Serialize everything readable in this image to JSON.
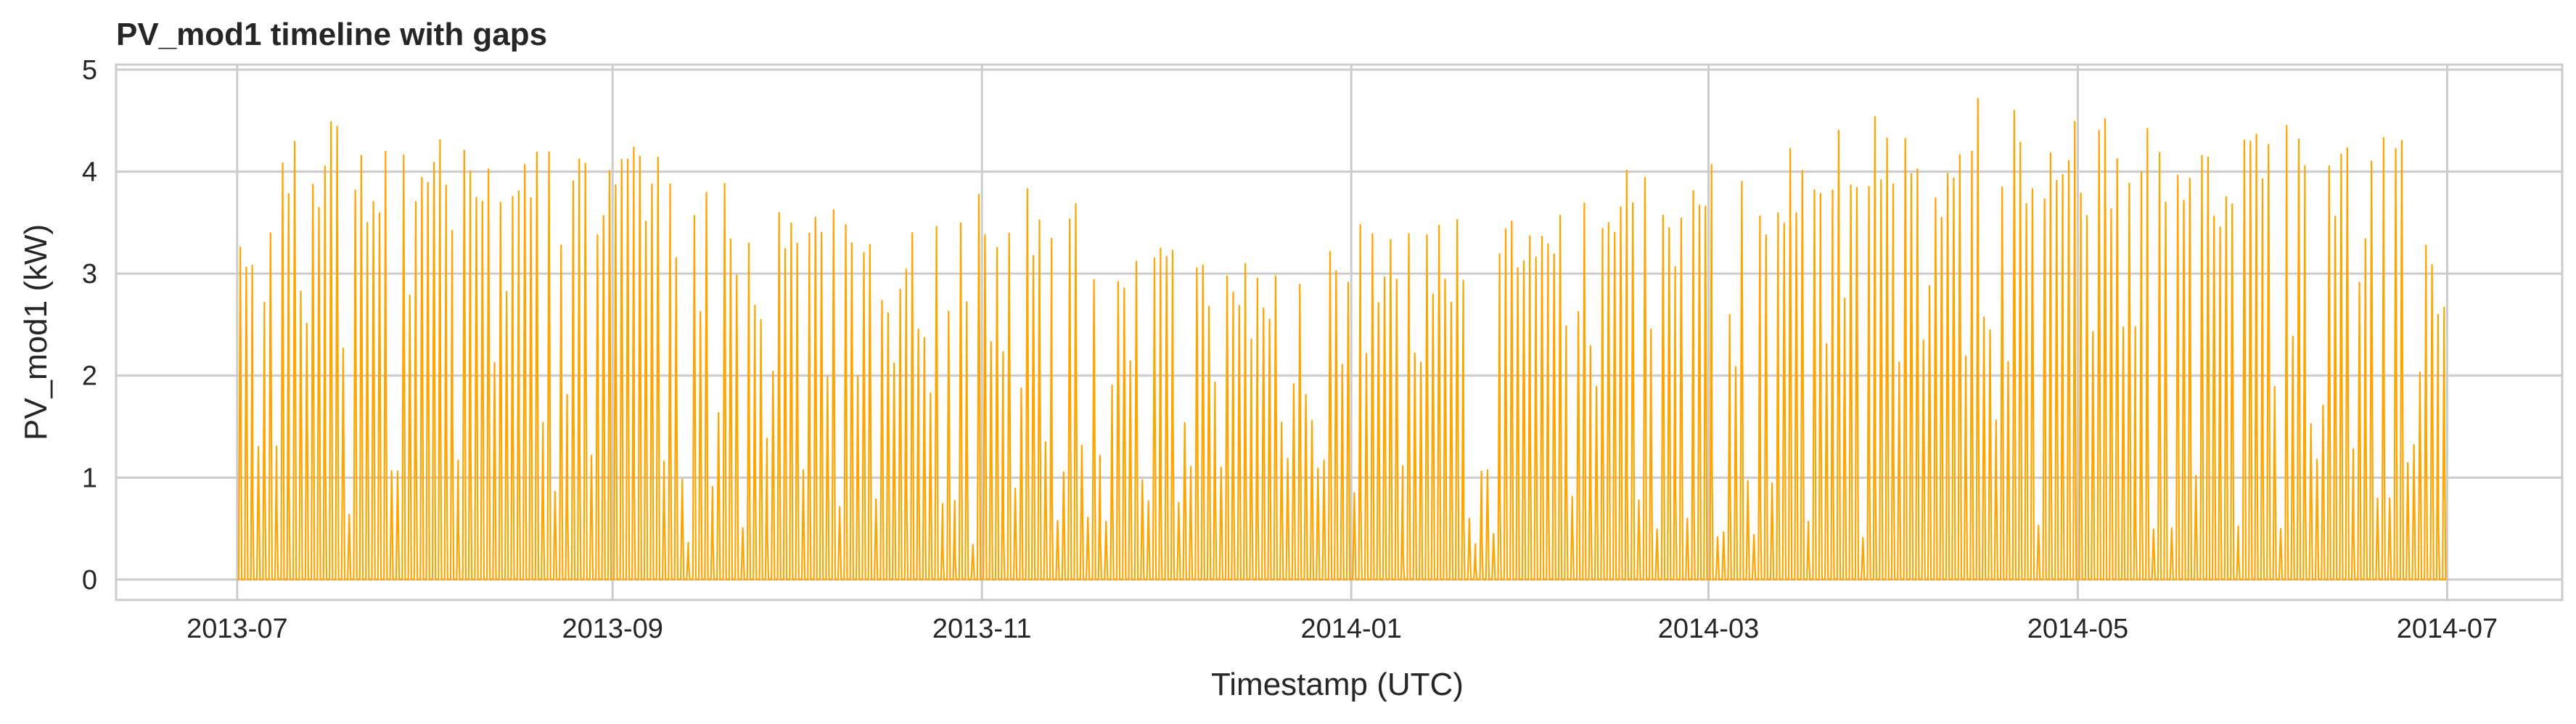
{
  "chart_data": {
    "type": "line",
    "title": "PV_mod1 timeline with gaps",
    "xlabel": "Timestamp (UTC)",
    "ylabel": "PV_mod1 (kW)",
    "ylim": [
      -0.2,
      5.05
    ],
    "xlim": [
      "2013-06-11",
      "2014-07-20"
    ],
    "x_ticks": [
      "2013-07",
      "2013-09",
      "2013-11",
      "2014-01",
      "2014-03",
      "2014-05",
      "2014-07"
    ],
    "y_ticks": [
      "0",
      "1",
      "2",
      "3",
      "4",
      "5"
    ],
    "x_range": [
      "2013-07-01",
      "2014-06-30"
    ],
    "grid": true,
    "color": "#FFA500",
    "series": [
      {
        "daily_peak": [
          {
            "date": "2013-07-01",
            "peak": 3.6
          },
          {
            "date": "2013-07-05",
            "peak": 3.2
          },
          {
            "date": "2013-07-08",
            "peak": 4.2
          },
          {
            "date": "2013-07-12",
            "peak": 4.4
          },
          {
            "date": "2013-07-15",
            "peak": 4.55
          },
          {
            "date": "2013-07-20",
            "peak": 4.3
          },
          {
            "date": "2013-07-25",
            "peak": 4.4
          },
          {
            "date": "2013-07-30",
            "peak": 4.3
          },
          {
            "date": "2013-08-05",
            "peak": 4.4
          },
          {
            "date": "2013-08-12",
            "peak": 4.3
          },
          {
            "date": "2013-08-20",
            "peak": 4.3
          },
          {
            "date": "2013-08-27",
            "peak": 4.3
          },
          {
            "date": "2013-09-03",
            "peak": 4.45
          },
          {
            "date": "2013-09-10",
            "peak": 4.2
          },
          {
            "date": "2013-09-18",
            "peak": 3.9
          },
          {
            "date": "2013-09-26",
            "peak": 3.8
          },
          {
            "date": "2013-10-05",
            "peak": 4.2
          },
          {
            "date": "2013-10-15",
            "peak": 3.3
          },
          {
            "date": "2013-10-25",
            "peak": 3.6
          },
          {
            "date": "2013-11-03",
            "peak": 4.0
          },
          {
            "date": "2013-11-12",
            "peak": 3.9
          },
          {
            "date": "2013-11-22",
            "peak": 3.4
          },
          {
            "date": "2013-12-05",
            "peak": 3.3
          },
          {
            "date": "2013-12-20",
            "peak": 3.1
          },
          {
            "date": "2014-01-01",
            "peak": 3.7
          },
          {
            "date": "2014-01-15",
            "peak": 3.5
          },
          {
            "date": "2014-02-01",
            "peak": 3.8
          },
          {
            "date": "2014-02-15",
            "peak": 4.1
          },
          {
            "date": "2014-03-01",
            "peak": 4.1
          },
          {
            "date": "2014-03-15",
            "peak": 4.3
          },
          {
            "date": "2014-03-25",
            "peak": 4.7
          },
          {
            "date": "2014-04-05",
            "peak": 4.5
          },
          {
            "date": "2014-04-15",
            "peak": 4.8
          },
          {
            "date": "2014-04-25",
            "peak": 4.6
          },
          {
            "date": "2014-05-05",
            "peak": 4.65
          },
          {
            "date": "2014-05-15",
            "peak": 4.5
          },
          {
            "date": "2014-05-25",
            "peak": 4.3
          },
          {
            "date": "2014-06-05",
            "peak": 4.5
          },
          {
            "date": "2014-06-15",
            "peak": 4.4
          },
          {
            "date": "2014-06-25",
            "peak": 4.3
          },
          {
            "date": "2014-06-30",
            "peak": 2.8
          }
        ]
      }
    ]
  }
}
